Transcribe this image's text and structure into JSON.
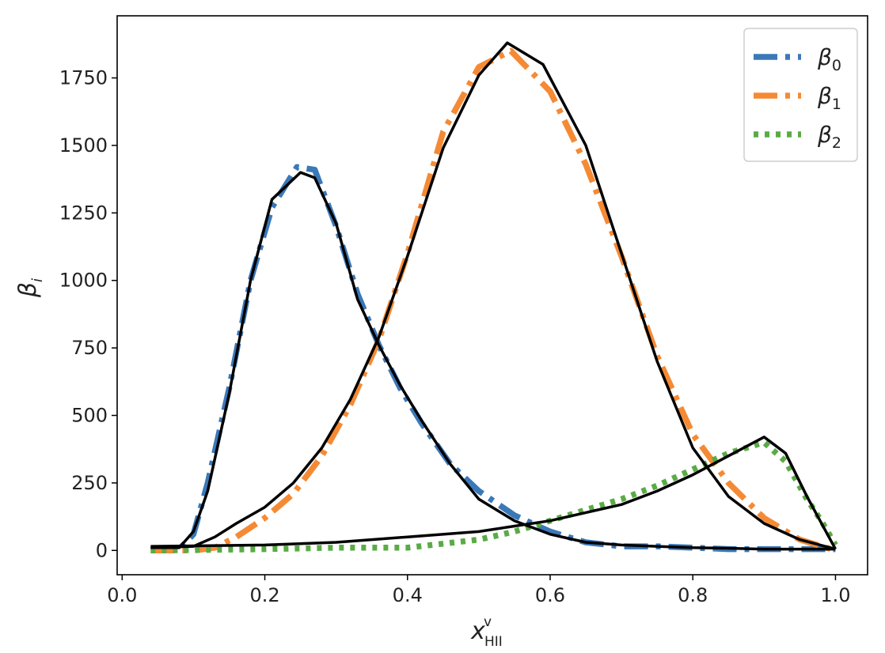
{
  "chart_data": {
    "type": "line",
    "title": "",
    "xlabel": "x",
    "xlabel_superscript": "v",
    "xlabel_subscript": "HII",
    "ylabel": "β",
    "ylabel_subscript": "i",
    "xlim": [
      0.0,
      1.0
    ],
    "ylim": [
      -90,
      1980
    ],
    "xticks": [
      "0.0",
      "0.2",
      "0.4",
      "0.6",
      "0.8",
      "1.0"
    ],
    "yticks": [
      "0",
      "250",
      "500",
      "750",
      "1000",
      "1250",
      "1500",
      "1750"
    ],
    "grid": false,
    "legend_position": "top-right",
    "series": [
      {
        "name": "β0",
        "legend_base": "β",
        "legend_sub": "0",
        "color": "#3b78b8",
        "style": "dashdot",
        "x": [
          0.04,
          0.08,
          0.1,
          0.12,
          0.15,
          0.18,
          0.21,
          0.245,
          0.27,
          0.3,
          0.33,
          0.36,
          0.39,
          0.42,
          0.46,
          0.5,
          0.55,
          0.6,
          0.65,
          0.7,
          0.75,
          0.8,
          0.85,
          0.9,
          0.95,
          1.0
        ],
        "y": [
          0,
          5,
          60,
          250,
          600,
          1000,
          1270,
          1420,
          1410,
          1200,
          950,
          760,
          600,
          470,
          320,
          220,
          130,
          70,
          30,
          15,
          15,
          10,
          5,
          5,
          5,
          5
        ]
      },
      {
        "name": "β1",
        "legend_base": "β",
        "legend_sub": "1",
        "color": "#f58a35",
        "style": "dashdot",
        "x": [
          0.04,
          0.1,
          0.13,
          0.16,
          0.2,
          0.24,
          0.28,
          0.32,
          0.36,
          0.4,
          0.45,
          0.5,
          0.545,
          0.6,
          0.65,
          0.7,
          0.75,
          0.8,
          0.85,
          0.9,
          0.95,
          1.0
        ],
        "y": [
          0,
          0,
          10,
          50,
          120,
          210,
          350,
          540,
          780,
          1100,
          1550,
          1790,
          1850,
          1700,
          1430,
          1090,
          720,
          430,
          250,
          120,
          40,
          0
        ]
      },
      {
        "name": "β2",
        "legend_base": "β",
        "legend_sub": "2",
        "color": "#5aab45",
        "style": "dotted",
        "x": [
          0.04,
          0.2,
          0.3,
          0.4,
          0.5,
          0.55,
          0.6,
          0.65,
          0.7,
          0.75,
          0.8,
          0.85,
          0.9,
          0.93,
          0.96,
          0.98,
          1.0
        ],
        "y": [
          0,
          5,
          10,
          10,
          40,
          70,
          110,
          150,
          190,
          240,
          300,
          360,
          400,
          330,
          190,
          110,
          20
        ]
      },
      {
        "name": "",
        "color": "#000000",
        "style": "solid",
        "x": [
          0.04,
          0.08,
          0.1,
          0.12,
          0.15,
          0.18,
          0.21,
          0.25,
          0.27,
          0.3,
          0.33,
          0.36,
          0.39,
          0.42,
          0.46,
          0.5,
          0.55,
          0.6,
          0.65,
          0.7,
          0.75,
          0.8,
          0.85,
          0.9,
          0.95,
          1.0
        ],
        "y": [
          10,
          10,
          70,
          220,
          580,
          1000,
          1300,
          1400,
          1380,
          1210,
          930,
          760,
          610,
          480,
          320,
          190,
          110,
          60,
          30,
          20,
          15,
          10,
          8,
          5,
          5,
          5
        ]
      },
      {
        "name": "",
        "color": "#000000",
        "style": "solid",
        "x": [
          0.04,
          0.1,
          0.13,
          0.16,
          0.2,
          0.24,
          0.28,
          0.32,
          0.36,
          0.4,
          0.45,
          0.5,
          0.54,
          0.59,
          0.65,
          0.7,
          0.75,
          0.8,
          0.85,
          0.9,
          0.95,
          1.0
        ],
        "y": [
          10,
          15,
          50,
          100,
          160,
          250,
          380,
          560,
          790,
          1090,
          1490,
          1760,
          1880,
          1800,
          1500,
          1100,
          700,
          380,
          200,
          100,
          40,
          5
        ]
      },
      {
        "name": "",
        "color": "#000000",
        "style": "solid",
        "x": [
          0.04,
          0.2,
          0.3,
          0.4,
          0.5,
          0.55,
          0.6,
          0.65,
          0.7,
          0.75,
          0.8,
          0.85,
          0.9,
          0.93,
          0.96,
          1.0
        ],
        "y": [
          15,
          20,
          30,
          50,
          70,
          90,
          110,
          140,
          170,
          220,
          280,
          350,
          420,
          360,
          200,
          5
        ]
      }
    ]
  }
}
